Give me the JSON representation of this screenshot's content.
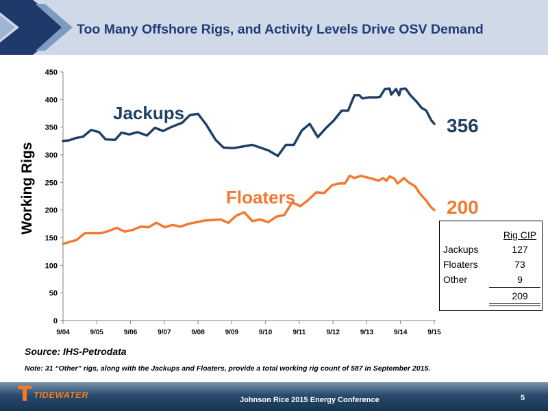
{
  "header": {
    "title": "Too Many Offshore Rigs, and Activity Levels Drive OSV Demand"
  },
  "colors": {
    "jackups": "#1f3f64",
    "floaters": "#f07a30",
    "title": "#1f3b78",
    "header_bg": "#cfd9e8"
  },
  "chart_data": {
    "type": "line",
    "title": "",
    "xlabel": "",
    "ylabel": "Working Rigs",
    "ylim": [
      0,
      450
    ],
    "yticks": [
      0,
      50,
      100,
      150,
      200,
      250,
      300,
      350,
      400,
      450
    ],
    "xlim": [
      2004.0,
      2015.75
    ],
    "xtick_labels": [
      "9/04",
      "9/05",
      "9/06",
      "9/07",
      "9/08",
      "9/09",
      "9/10",
      "9/11",
      "9/12",
      "9/13",
      "9/14",
      "9/15"
    ],
    "grid": false,
    "series": [
      {
        "name": "Jackups",
        "end_label": "356",
        "points": [
          [
            2004.67,
            325
          ],
          [
            2004.85,
            326
          ],
          [
            2005.05,
            330
          ],
          [
            2005.3,
            333
          ],
          [
            2005.55,
            345
          ],
          [
            2005.8,
            341
          ],
          [
            2006.0,
            328
          ],
          [
            2006.3,
            327
          ],
          [
            2006.5,
            340
          ],
          [
            2006.75,
            337
          ],
          [
            2007.0,
            341
          ],
          [
            2007.3,
            335
          ],
          [
            2007.55,
            349
          ],
          [
            2007.8,
            343
          ],
          [
            2008.05,
            350
          ],
          [
            2008.4,
            358
          ],
          [
            2008.65,
            372
          ],
          [
            2008.9,
            374
          ],
          [
            2009.15,
            355
          ],
          [
            2009.45,
            327
          ],
          [
            2009.7,
            313
          ],
          [
            2010.0,
            312
          ],
          [
            2010.3,
            315
          ],
          [
            2010.6,
            318
          ],
          [
            2010.85,
            313
          ],
          [
            2011.1,
            308
          ],
          [
            2011.4,
            298
          ],
          [
            2011.65,
            318
          ],
          [
            2011.9,
            318
          ],
          [
            2012.15,
            344
          ],
          [
            2012.4,
            356
          ],
          [
            2012.65,
            332
          ],
          [
            2012.9,
            348
          ],
          [
            2013.15,
            362
          ],
          [
            2013.4,
            380
          ],
          [
            2013.6,
            380
          ],
          [
            2013.8,
            408
          ],
          [
            2013.95,
            408
          ],
          [
            2014.05,
            402
          ],
          [
            2014.25,
            404
          ],
          [
            2014.5,
            404
          ],
          [
            2014.6,
            405
          ],
          [
            2014.75,
            419
          ],
          [
            2014.9,
            420
          ],
          [
            2014.95,
            409
          ],
          [
            2015.1,
            419
          ],
          [
            2015.2,
            408
          ],
          [
            2015.25,
            419
          ],
          [
            2015.4,
            420
          ],
          [
            2015.55,
            408
          ],
          [
            2015.75,
            396
          ],
          [
            2015.9,
            385
          ],
          [
            2016.05,
            380
          ],
          [
            2016.2,
            363
          ],
          [
            2016.3,
            356
          ]
        ]
      },
      {
        "name": "Floaters",
        "end_label": "200",
        "points": [
          [
            2004.67,
            139
          ],
          [
            2004.85,
            142
          ],
          [
            2005.1,
            146
          ],
          [
            2005.35,
            158
          ],
          [
            2005.6,
            158
          ],
          [
            2005.85,
            158
          ],
          [
            2006.1,
            162
          ],
          [
            2006.35,
            168
          ],
          [
            2006.6,
            161
          ],
          [
            2006.85,
            164
          ],
          [
            2007.1,
            170
          ],
          [
            2007.35,
            169
          ],
          [
            2007.6,
            177
          ],
          [
            2007.85,
            169
          ],
          [
            2008.1,
            173
          ],
          [
            2008.35,
            170
          ],
          [
            2008.6,
            175
          ],
          [
            2008.85,
            178
          ],
          [
            2009.1,
            181
          ],
          [
            2009.35,
            182
          ],
          [
            2009.6,
            183
          ],
          [
            2009.85,
            177
          ],
          [
            2010.1,
            190
          ],
          [
            2010.35,
            196
          ],
          [
            2010.6,
            180
          ],
          [
            2010.85,
            183
          ],
          [
            2011.1,
            178
          ],
          [
            2011.35,
            188
          ],
          [
            2011.6,
            191
          ],
          [
            2011.85,
            214
          ],
          [
            2012.1,
            207
          ],
          [
            2012.35,
            218
          ],
          [
            2012.6,
            232
          ],
          [
            2012.85,
            231
          ],
          [
            2013.1,
            245
          ],
          [
            2013.3,
            248
          ],
          [
            2013.5,
            248
          ],
          [
            2013.65,
            262
          ],
          [
            2013.8,
            258
          ],
          [
            2014.0,
            262
          ],
          [
            2014.2,
            259
          ],
          [
            2014.4,
            256
          ],
          [
            2014.55,
            253
          ],
          [
            2014.7,
            258
          ],
          [
            2014.8,
            253
          ],
          [
            2014.9,
            261
          ],
          [
            2015.05,
            257
          ],
          [
            2015.15,
            248
          ],
          [
            2015.35,
            258
          ],
          [
            2015.5,
            250
          ],
          [
            2015.7,
            243
          ],
          [
            2015.85,
            230
          ],
          [
            2016.05,
            217
          ],
          [
            2016.2,
            205
          ],
          [
            2016.3,
            200
          ]
        ]
      }
    ],
    "table": {
      "header": "Rig CIP",
      "rows": [
        {
          "label": "Jackups",
          "value": "127"
        },
        {
          "label": "Floaters",
          "value": "73"
        },
        {
          "label": "Other",
          "value": "9"
        }
      ],
      "total": "209"
    }
  },
  "footer": {
    "source": "Source: IHS-Petrodata",
    "note": "Note: 31 “Other” rigs, along with the Jackups and Floaters, provide a total working rig count of 587 in September 2015.",
    "logo_text": "TIDEWATER",
    "conference": "Johnson Rice 2015 Energy Conference",
    "page_number": "5"
  }
}
